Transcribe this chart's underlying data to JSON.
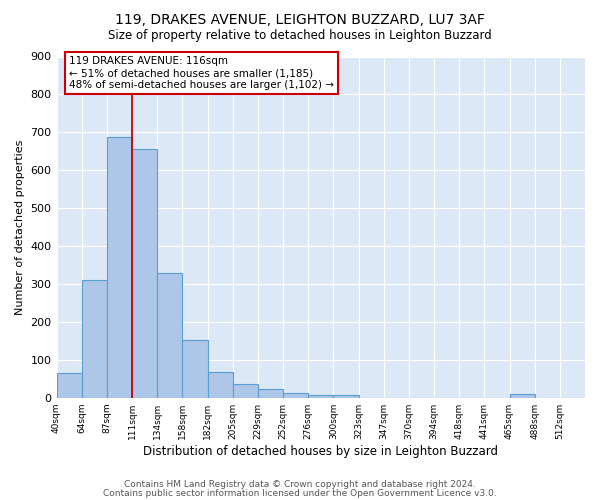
{
  "title": "119, DRAKES AVENUE, LEIGHTON BUZZARD, LU7 3AF",
  "subtitle": "Size of property relative to detached houses in Leighton Buzzard",
  "xlabel": "Distribution of detached houses by size in Leighton Buzzard",
  "ylabel": "Number of detached properties",
  "bar_values": [
    65,
    310,
    687,
    655,
    330,
    153,
    68,
    35,
    22,
    12,
    8,
    7,
    0,
    0,
    0,
    0,
    0,
    0,
    10,
    0,
    0
  ],
  "bin_labels": [
    "40sqm",
    "64sqm",
    "87sqm",
    "111sqm",
    "134sqm",
    "158sqm",
    "182sqm",
    "205sqm",
    "229sqm",
    "252sqm",
    "276sqm",
    "300sqm",
    "323sqm",
    "347sqm",
    "370sqm",
    "394sqm",
    "418sqm",
    "441sqm",
    "465sqm",
    "488sqm",
    "512sqm"
  ],
  "bar_color": "#aec6e8",
  "bar_edge_color": "#5a9fd4",
  "property_line_x": 3,
  "property_line_color": "#cc0000",
  "annotation_title": "119 DRAKES AVENUE: 116sqm",
  "annotation_line1": "← 51% of detached houses are smaller (1,185)",
  "annotation_line2": "48% of semi-detached houses are larger (1,102) →",
  "annotation_box_color": "#cc0000",
  "ylim": [
    0,
    900
  ],
  "yticks": [
    0,
    100,
    200,
    300,
    400,
    500,
    600,
    700,
    800,
    900
  ],
  "footer1": "Contains HM Land Registry data © Crown copyright and database right 2024.",
  "footer2": "Contains public sector information licensed under the Open Government Licence v3.0.",
  "background_color": "#dce8f5",
  "plot_background": "#ffffff"
}
